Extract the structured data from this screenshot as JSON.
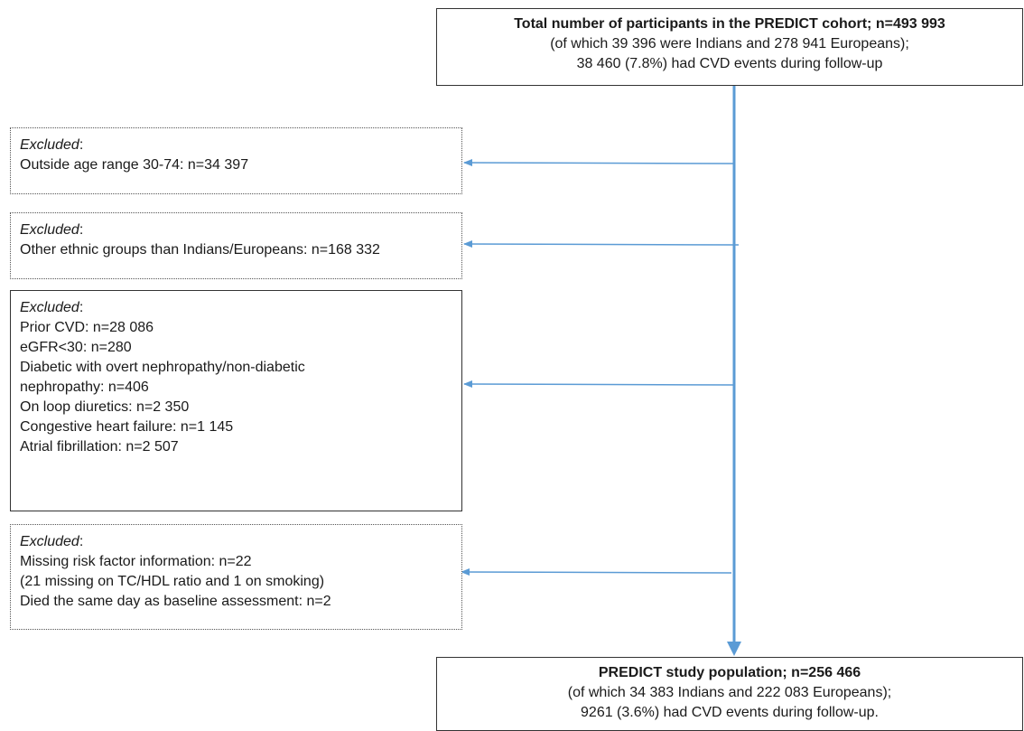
{
  "top_box": {
    "title": "Total number of participants in the PREDICT cohort; n=493 993",
    "line2": "(of which 39 396 were Indians and 278 941 Europeans);",
    "line3": "38 460 (7.8%) had CVD events during follow-up"
  },
  "exclusions": [
    {
      "heading": "Excluded",
      "lines": [
        "Outside age range 30-74: n=34 397"
      ]
    },
    {
      "heading": "Excluded",
      "lines": [
        "Other ethnic groups than Indians/Europeans: n=168 332"
      ]
    },
    {
      "heading": "Excluded",
      "lines": [
        "Prior CVD: n=28 086",
        "eGFR<30: n=280",
        "Diabetic with overt nephropathy/non-diabetic",
        "nephropathy: n=406",
        "On loop diuretics: n=2 350",
        "Congestive heart failure: n=1 145",
        "Atrial fibrillation: n=2 507"
      ]
    },
    {
      "heading": "Excluded",
      "lines": [
        "Missing risk factor information: n=22",
        "(21 missing on TC/HDL ratio and 1 on smoking)",
        "Died the same day as baseline assessment: n=2"
      ]
    }
  ],
  "bottom_box": {
    "title": "PREDICT study population;  n=256 466",
    "line2": "(of which 34 383 Indians and 222 083 Europeans);",
    "line3": "9261 (3.6%) had CVD events during follow-up."
  },
  "colors": {
    "arrow": "#5b9bd5",
    "border": "#333333"
  }
}
